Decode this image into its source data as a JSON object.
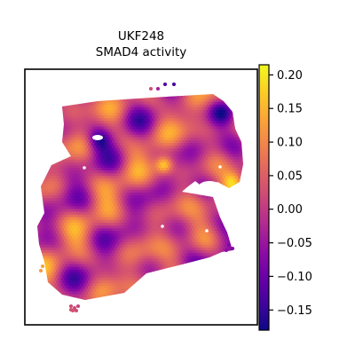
{
  "chart_data": {
    "type": "heatmap",
    "title_lines": [
      "UKF248",
      "SMAD4 activity"
    ],
    "colormap": "plasma",
    "colorbar": {
      "range": [
        -0.18,
        0.215
      ],
      "ticks": [
        0.2,
        0.15,
        0.1,
        0.05,
        0.0,
        -0.05,
        -0.1,
        -0.15
      ],
      "tick_labels": [
        "0.20",
        "0.15",
        "0.10",
        "0.05",
        "0.00",
        "−0.05",
        "−0.10",
        "−0.15"
      ]
    },
    "xlabel": "",
    "ylabel": "",
    "grid": false
  }
}
